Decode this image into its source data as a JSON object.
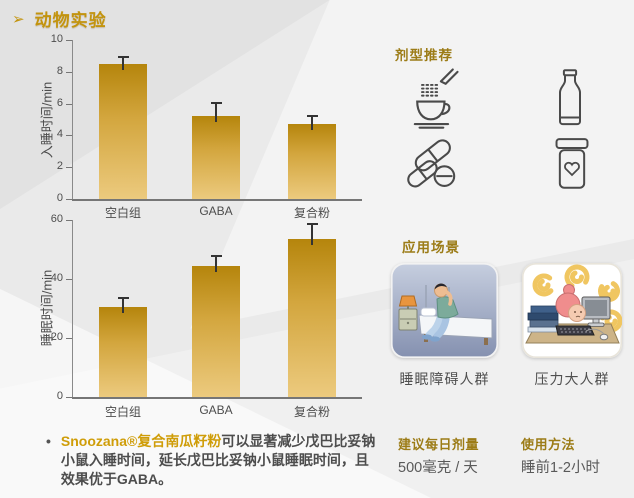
{
  "page_title": {
    "arrow": "➢",
    "text": "动物实验"
  },
  "chart_data": [
    {
      "type": "bar",
      "categories": [
        "空白组",
        "GABA",
        "复合粉"
      ],
      "values": [
        8.5,
        5.2,
        4.7
      ],
      "errors": [
        0.5,
        0.9,
        0.6
      ],
      "title": "",
      "xlabel": "",
      "ylabel": "入睡时间/min",
      "ylim": [
        0,
        10
      ],
      "yticks": [
        0,
        2,
        4,
        6,
        8,
        10
      ],
      "grid": false,
      "legend": false
    },
    {
      "type": "bar",
      "categories": [
        "空白组",
        "GABA",
        "复合粉"
      ],
      "values": [
        30.5,
        44.5,
        53.5
      ],
      "errors": [
        3.5,
        3.5,
        5.5
      ],
      "title": "",
      "xlabel": "",
      "ylabel": "睡眠时间/min",
      "ylim": [
        0,
        60
      ],
      "yticks": [
        0,
        20,
        40,
        60
      ],
      "grid": false,
      "legend": false
    }
  ],
  "dosage_forms": {
    "heading": "剂型推荐",
    "icons": [
      "powder-drink-icon",
      "milk-bottle-icon",
      "pills-icon",
      "supplement-jar-icon"
    ]
  },
  "scenarios": {
    "heading": "应用场景",
    "items": [
      {
        "icon": "sleep-disorder-illustration",
        "label": "睡眠障碍人群"
      },
      {
        "icon": "stress-illustration",
        "label": "压力大人群"
      }
    ]
  },
  "conclusion": {
    "bullet": "•",
    "highlight": "Snoozana®复合南瓜籽粉",
    "text": "可以显著减少戊巴比妥钠小鼠入睡时间，延长戊巴比妥钠小鼠睡眠时间，且效果优于GABA。"
  },
  "dosage_info": {
    "heading": "建议每日剂量",
    "value": "500毫克 / 天"
  },
  "usage_info": {
    "heading": "使用方法",
    "value": "睡前1-2小时"
  },
  "colors": {
    "accent_gold": "#c3940e",
    "section_gold": "#9c7c17",
    "bar_top": "#b5850c",
    "bar_bottom": "#ecca7e",
    "error_bar": "#333333",
    "text_dark": "#4d4d4d"
  }
}
